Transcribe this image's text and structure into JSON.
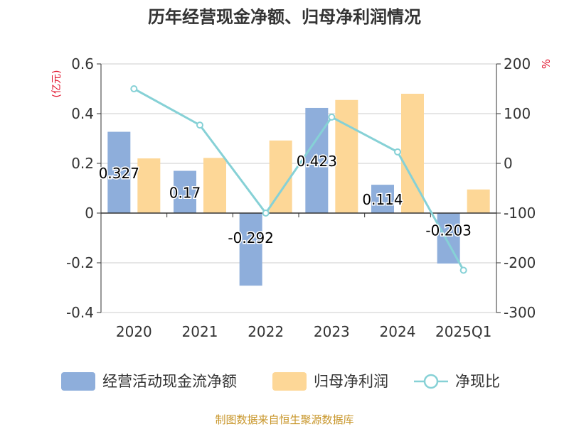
{
  "chart_data": {
    "type": "bar",
    "title": "历年经营现金净额、归母净利润情况",
    "source": "制图数据来自恒生聚源数据库",
    "categories": [
      "2020",
      "2021",
      "2022",
      "2023",
      "2024",
      "2025Q1"
    ],
    "y_left": {
      "unit": "(亿元)",
      "ticks": [
        "0.6",
        "0.4",
        "0.2",
        "0",
        "-0.2",
        "-0.4"
      ],
      "range": [
        -0.4,
        0.6
      ]
    },
    "y_right": {
      "unit": "%",
      "ticks": [
        "200",
        "100",
        "0",
        "-100",
        "-200",
        "-300"
      ],
      "range": [
        -300,
        200
      ]
    },
    "series": [
      {
        "name": "经营活动现金流净额",
        "type": "bar",
        "color": "#8eaedb",
        "values": [
          0.327,
          0.17,
          -0.292,
          0.423,
          0.114,
          -0.203
        ],
        "labels": [
          "0.327",
          "0.17",
          "-0.292",
          "0.423",
          "0.114",
          "-0.203"
        ]
      },
      {
        "name": "归母净利润",
        "type": "bar",
        "color": "#fdd797",
        "values": [
          0.22,
          0.222,
          0.292,
          0.455,
          0.48,
          0.095
        ]
      },
      {
        "name": "净现比",
        "type": "line",
        "color": "#86d1d6",
        "axis": "right",
        "values": [
          150,
          77,
          -100,
          93,
          23,
          -215
        ]
      }
    ],
    "grid": true,
    "legend_position": "bottom"
  }
}
